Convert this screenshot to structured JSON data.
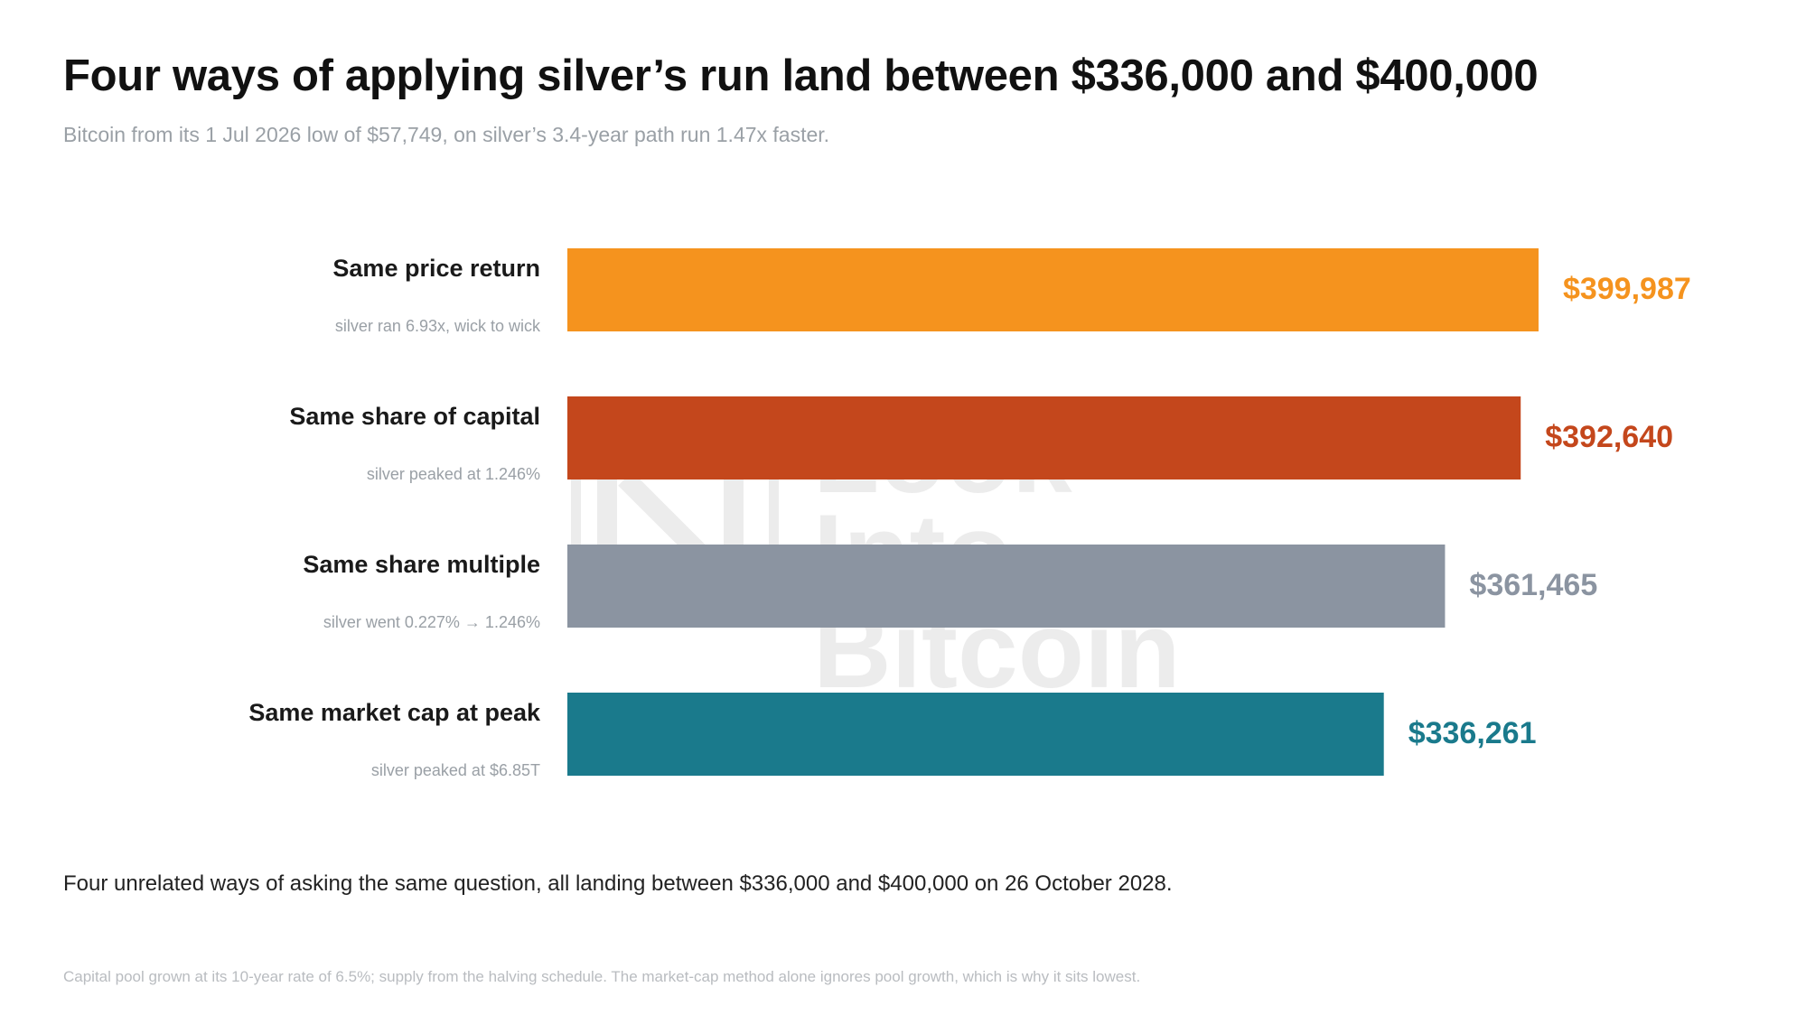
{
  "header": {
    "title": "Four ways of applying silver’s run land between $336,000 and $400,000",
    "subtitle": "Bitcoin from its 1 Jul 2026 low of $57,749, on silver’s 3.4-year path run 1.47x faster."
  },
  "watermark": {
    "text": "Look Into\nBitcoin",
    "icon": "look-into-bitcoin-logo-icon"
  },
  "chart_data": {
    "type": "bar",
    "orientation": "horizontal",
    "categories": [
      "Same price return",
      "Same share of capital",
      "Same share multiple",
      "Same market cap at peak"
    ],
    "sublabels": [
      "silver ran 6.93x, wick to wick",
      "silver peaked at 1.246%",
      "silver went 0.227% → 1.246%",
      "silver peaked at $6.85T"
    ],
    "values": [
      399987,
      392640,
      361465,
      336261
    ],
    "value_labels": [
      "$399,987",
      "$392,640",
      "$361,465",
      "$336,261"
    ],
    "colors": [
      "#f5931e",
      "#c4471c",
      "#8b94a1",
      "#1a7a8c"
    ],
    "xlim": [
      0,
      400000
    ],
    "grid": false,
    "title": "Four ways of applying silver’s run land between $336,000 and $400,000",
    "xlabel": "",
    "ylabel": ""
  },
  "takeaway": "Four unrelated ways of asking the same question, all landing between $336,000 and $400,000 on 26 October 2028.",
  "footnote": "Capital pool grown at its 10-year rate of 6.5%; supply from the halving schedule. The market-cap method alone ignores pool growth, which is why it sits lowest."
}
